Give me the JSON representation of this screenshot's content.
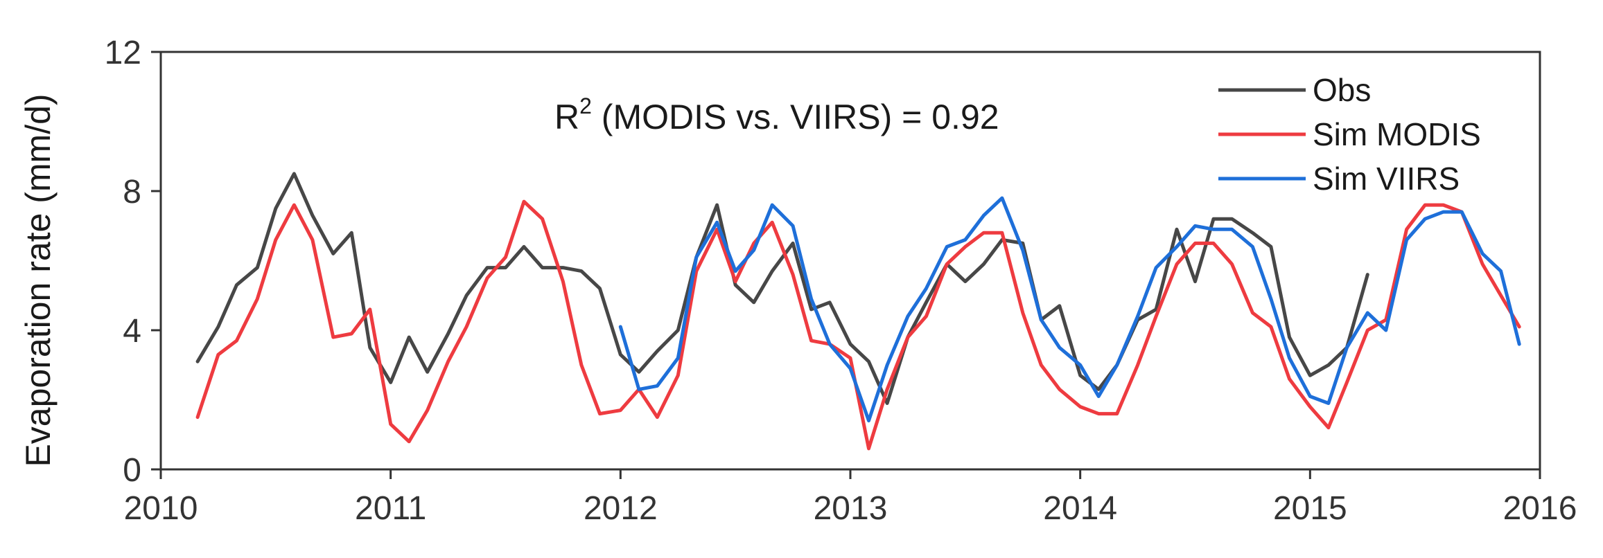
{
  "chart_data": {
    "type": "line",
    "title": "",
    "xlabel": "",
    "ylabel": "Evaporation rate (mm/d)",
    "xlim": [
      2010,
      2016
    ],
    "ylim": [
      0,
      12
    ],
    "x_ticks": [
      2010,
      2011,
      2012,
      2013,
      2014,
      2015,
      2016
    ],
    "x_tick_labels": [
      "2010",
      "2011",
      "2012",
      "2013",
      "2014",
      "2015",
      "2016"
    ],
    "y_ticks": [
      0,
      4,
      8,
      12
    ],
    "y_tick_labels": [
      "0",
      "4",
      "8",
      "12"
    ],
    "grid": false,
    "legend_position": "top-right",
    "annotation": {
      "prefix": "R",
      "superscript": "2",
      "suffix": " (MODIS vs. VIIRS) = 0.92"
    },
    "series": [
      {
        "name": "Obs",
        "color": "#474747",
        "x": [
          2010.16,
          2010.25,
          2010.33,
          2010.42,
          2010.5,
          2010.58,
          2010.66,
          2010.75,
          2010.83,
          2010.91,
          2011.0,
          2011.08,
          2011.16,
          2011.25,
          2011.33,
          2011.42,
          2011.5,
          2011.58,
          2011.66,
          2011.75,
          2011.83,
          2011.91,
          2012.0,
          2012.08,
          2012.16,
          2012.25,
          2012.33,
          2012.42,
          2012.5,
          2012.58,
          2012.66,
          2012.75,
          2012.83,
          2012.91,
          2013.0,
          2013.08,
          2013.16,
          2013.25,
          2013.33,
          2013.42,
          2013.5,
          2013.58,
          2013.66,
          2013.75,
          2013.83,
          2013.91,
          2014.0,
          2014.08,
          2014.16,
          2014.25,
          2014.33,
          2014.42,
          2014.5,
          2014.58,
          2014.66,
          2014.75,
          2014.83,
          2014.91,
          2015.0,
          2015.08,
          2015.16,
          2015.25
        ],
        "values": [
          3.1,
          4.1,
          5.3,
          5.8,
          7.5,
          8.5,
          7.3,
          6.2,
          6.8,
          3.5,
          2.5,
          3.8,
          2.8,
          3.9,
          5.0,
          5.8,
          5.8,
          6.4,
          5.8,
          5.8,
          5.7,
          5.2,
          3.3,
          2.8,
          3.4,
          4.0,
          6.1,
          7.6,
          5.3,
          4.8,
          5.7,
          6.5,
          4.6,
          4.8,
          3.6,
          3.1,
          1.9,
          3.8,
          4.8,
          5.9,
          5.4,
          5.9,
          6.6,
          6.5,
          4.3,
          4.7,
          2.7,
          2.3,
          3.0,
          4.3,
          4.6,
          6.9,
          5.4,
          7.2,
          7.2,
          6.8,
          6.4,
          3.8,
          2.7,
          3.0,
          3.5,
          5.6
        ]
      },
      {
        "name": "Sim MODIS",
        "color": "#ee3b40",
        "x": [
          2010.16,
          2010.25,
          2010.33,
          2010.42,
          2010.5,
          2010.58,
          2010.66,
          2010.75,
          2010.83,
          2010.91,
          2011.0,
          2011.08,
          2011.16,
          2011.25,
          2011.33,
          2011.42,
          2011.5,
          2011.58,
          2011.66,
          2011.75,
          2011.83,
          2011.91,
          2012.0,
          2012.08,
          2012.16,
          2012.25,
          2012.33,
          2012.42,
          2012.5,
          2012.58,
          2012.66,
          2012.75,
          2012.83,
          2012.91,
          2013.0,
          2013.08,
          2013.16,
          2013.25,
          2013.33,
          2013.42,
          2013.5,
          2013.58,
          2013.66,
          2013.75,
          2013.83,
          2013.91,
          2014.0,
          2014.08,
          2014.16,
          2014.25,
          2014.33,
          2014.42,
          2014.5,
          2014.58,
          2014.66,
          2014.75,
          2014.83,
          2014.91,
          2015.0,
          2015.08,
          2015.16,
          2015.25,
          2015.33,
          2015.42,
          2015.5,
          2015.58,
          2015.66,
          2015.75,
          2015.83,
          2015.91
        ],
        "values": [
          1.5,
          3.3,
          3.7,
          4.9,
          6.6,
          7.6,
          6.6,
          3.8,
          3.9,
          4.6,
          1.3,
          0.8,
          1.7,
          3.1,
          4.1,
          5.5,
          6.1,
          7.7,
          7.2,
          5.4,
          3.0,
          1.6,
          1.7,
          2.3,
          1.5,
          2.7,
          5.7,
          6.9,
          5.4,
          6.5,
          7.1,
          5.6,
          3.7,
          3.6,
          3.2,
          0.6,
          2.3,
          3.8,
          4.4,
          5.9,
          6.4,
          6.8,
          6.8,
          4.5,
          3.0,
          2.3,
          1.8,
          1.6,
          1.6,
          3.0,
          4.4,
          5.9,
          6.5,
          6.5,
          5.9,
          4.5,
          4.1,
          2.6,
          1.8,
          1.2,
          2.5,
          4.0,
          4.3,
          6.9,
          7.6,
          7.6,
          7.4,
          5.9,
          5.0,
          4.1
        ]
      },
      {
        "name": "Sim VIIRS",
        "color": "#1e6fd9",
        "x": [
          2012.0,
          2012.08,
          2012.16,
          2012.25,
          2012.33,
          2012.42,
          2012.5,
          2012.58,
          2012.66,
          2012.75,
          2012.83,
          2012.91,
          2013.0,
          2013.08,
          2013.16,
          2013.25,
          2013.33,
          2013.42,
          2013.5,
          2013.58,
          2013.66,
          2013.75,
          2013.83,
          2013.91,
          2014.0,
          2014.08,
          2014.16,
          2014.25,
          2014.33,
          2014.42,
          2014.5,
          2014.58,
          2014.66,
          2014.75,
          2014.83,
          2014.91,
          2015.0,
          2015.08,
          2015.16,
          2015.25,
          2015.33,
          2015.42,
          2015.5,
          2015.58,
          2015.66,
          2015.75,
          2015.83,
          2015.91
        ],
        "values": [
          4.1,
          2.3,
          2.4,
          3.2,
          6.1,
          7.1,
          5.7,
          6.3,
          7.6,
          7.0,
          4.9,
          3.6,
          2.9,
          1.4,
          3.0,
          4.4,
          5.2,
          6.4,
          6.6,
          7.3,
          7.8,
          6.3,
          4.3,
          3.5,
          3.0,
          2.1,
          3.0,
          4.4,
          5.8,
          6.4,
          7.0,
          6.9,
          6.9,
          6.4,
          4.9,
          3.2,
          2.1,
          1.9,
          3.5,
          4.5,
          4.0,
          6.6,
          7.2,
          7.4,
          7.4,
          6.2,
          5.7,
          3.6
        ]
      }
    ]
  }
}
